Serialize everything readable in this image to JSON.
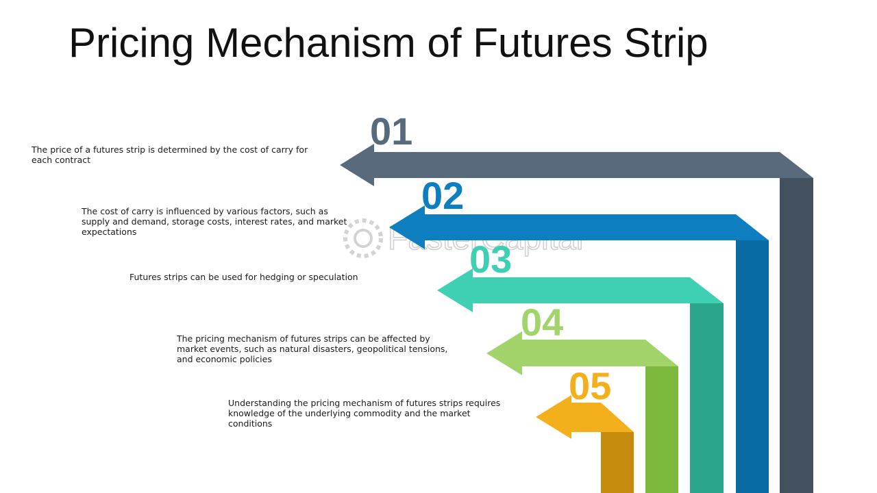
{
  "title": "Pricing Mechanism of Futures Strip",
  "watermark": {
    "text": "FasterCapital",
    "color": "#c8c8c8",
    "icon": "gear-icon"
  },
  "steps": [
    {
      "number": "01",
      "text": "The price of a futures strip is determined by the cost of carry for each contract",
      "color": "#596a7c",
      "shade": "#435060"
    },
    {
      "number": "02",
      "text": "The cost of carry is influenced by various factors, such as supply and demand, storage costs, interest rates, and market expectations",
      "color": "#0d7fc0",
      "shade": "#0a6aa3"
    },
    {
      "number": "03",
      "text": "Futures strips can be used for hedging or speculation",
      "color": "#3fd0b4",
      "shade": "#2aa58c"
    },
    {
      "number": "04",
      "text": "The pricing mechanism of futures strips can be affected by market events, such as natural disasters, geopolitical tensions, and economic policies",
      "color": "#a3d36b",
      "shade": "#7cb93c"
    },
    {
      "number": "05",
      "text": "Understanding the pricing mechanism of futures strips requires knowledge of the underlying commodity and the market conditions",
      "color": "#f4b01c",
      "shade": "#c58c0d"
    }
  ]
}
